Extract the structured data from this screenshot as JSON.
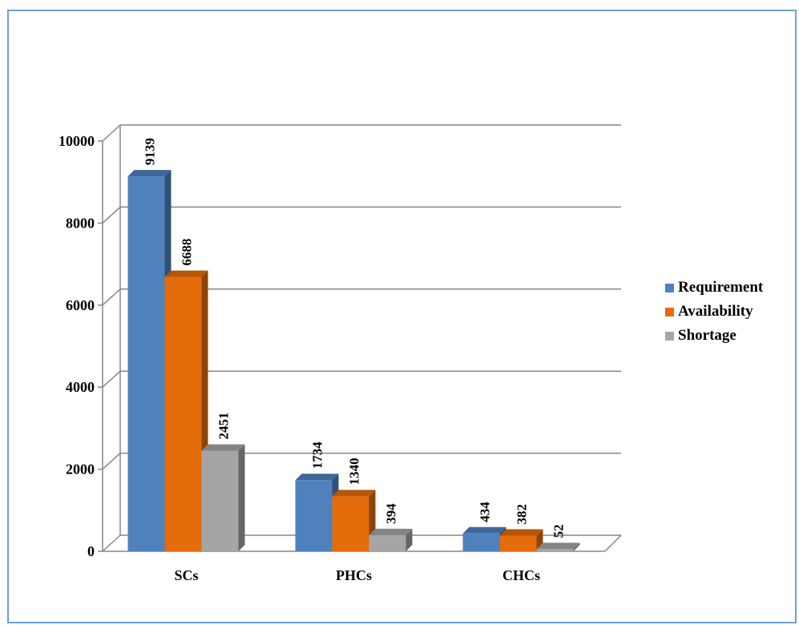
{
  "chart_data": {
    "type": "bar",
    "title": "",
    "xlabel": "",
    "ylabel": "",
    "categories": [
      "SCs",
      "PHCs",
      "CHCs"
    ],
    "series": [
      {
        "name": "Requirement",
        "values": [
          9139,
          1734,
          434
        ],
        "color": "#4f81bd"
      },
      {
        "name": "Availability",
        "values": [
          6688,
          1340,
          382
        ],
        "color": "#e46c0a"
      },
      {
        "name": "Shortage",
        "values": [
          2451,
          394,
          52
        ],
        "color": "#a5a5a5"
      }
    ],
    "yticks": [
      "0",
      "2000",
      "4000",
      "6000",
      "8000",
      "10000"
    ],
    "ylim": [
      0,
      10000
    ],
    "grid": true,
    "legend_position": "right",
    "three_d": true
  }
}
